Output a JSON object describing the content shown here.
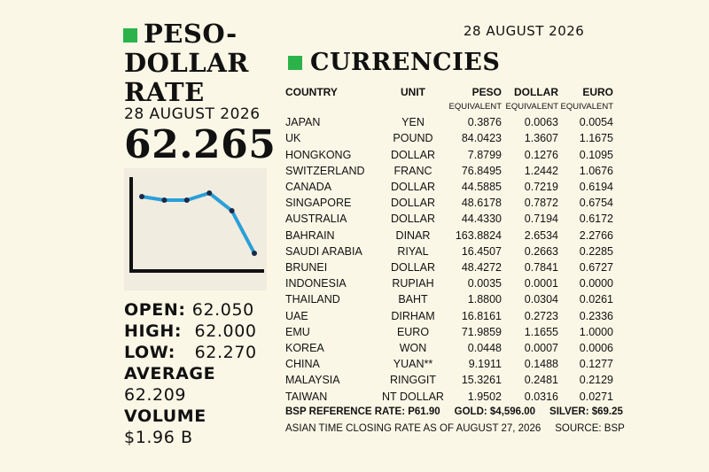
{
  "left": {
    "title_line1": "PESO-",
    "title_line2": "DOLLAR",
    "title_line3": "RATE",
    "date": "28 AUGUST 2026",
    "rate": "62.265",
    "chart_data": {
      "type": "line",
      "x": [
        1,
        2,
        3,
        4,
        5,
        6
      ],
      "values": [
        62.14,
        62.13,
        62.13,
        62.15,
        62.1,
        61.98
      ],
      "ylim": [
        61.95,
        62.2
      ],
      "grid": false,
      "color": "#2a9fd8"
    },
    "open_label": "OPEN:",
    "open_value": "62.050",
    "high_label": "HIGH:",
    "high_value": "62.000",
    "low_label": "LOW:",
    "low_value": "62.270",
    "average_label": "AVERAGE",
    "average_value": "62.209",
    "volume_label": "VOLUME",
    "volume_value": "$1.96 B"
  },
  "right": {
    "date": "28 AUGUST 2026",
    "title": "CURRENCIES",
    "headers": [
      "COUNTRY",
      "UNIT",
      "PESO",
      "DOLLAR",
      "EURO"
    ],
    "subheaders": [
      "EQUIVALENT",
      "EQUIVALENT",
      "EQUIVALENT"
    ],
    "rows": [
      [
        "JAPAN",
        "YEN",
        "0.3876",
        "0.0063",
        "0.0054"
      ],
      [
        "UK",
        "POUND",
        "84.0423",
        "1.3607",
        "1.1675"
      ],
      [
        "HONGKONG",
        "DOLLAR",
        "7.8799",
        "0.1276",
        "0.1095"
      ],
      [
        "SWITZERLAND",
        "FRANC",
        "76.8495",
        "1.2442",
        "1.0676"
      ],
      [
        "CANADA",
        "DOLLAR",
        "44.5885",
        "0.7219",
        "0.6194"
      ],
      [
        "SINGAPORE",
        "DOLLAR",
        "48.6178",
        "0.7872",
        "0.6754"
      ],
      [
        "AUSTRALIA",
        "DOLLAR",
        "44.4330",
        "0.7194",
        "0.6172"
      ],
      [
        "BAHRAIN",
        "DINAR",
        "163.8824",
        "2.6534",
        "2.2766"
      ],
      [
        "SAUDI ARABIA",
        "RIYAL",
        "16.4507",
        "0.2663",
        "0.2285"
      ],
      [
        "BRUNEI",
        "DOLLAR",
        "48.4272",
        "0.7841",
        "0.6727"
      ],
      [
        "INDONESIA",
        "RUPIAH",
        "0.0035",
        "0.0001",
        "0.0000"
      ],
      [
        "THAILAND",
        "BAHT",
        "1.8800",
        "0.0304",
        "0.0261"
      ],
      [
        "UAE",
        "DIRHAM",
        "16.8161",
        "0.2723",
        "0.2336"
      ],
      [
        "EMU",
        "EURO",
        "71.9859",
        "1.1655",
        "1.0000"
      ],
      [
        "KOREA",
        "WON",
        "0.0448",
        "0.0007",
        "0.0006"
      ],
      [
        "CHINA",
        "YUAN**",
        "9.1911",
        "0.1488",
        "0.1277"
      ],
      [
        "MALAYSIA",
        "RINGGIT",
        "15.3261",
        "0.2481",
        "0.2129"
      ],
      [
        "TAIWAN",
        "NT DOLLAR",
        "1.9502",
        "0.0316",
        "0.0271"
      ]
    ],
    "footer_line1": "BSP REFERENCE RATE: P61.90     GOLD: $4,596.00     SILVER: $69.25",
    "footer_line2": "ASIAN TIME CLOSING RATE AS OF AUGUST 27, 2026     SOURCE: BSP"
  },
  "colors": {
    "accent": "#2bb34a",
    "line": "#2a9fd8",
    "background": "#fbf7e6"
  }
}
